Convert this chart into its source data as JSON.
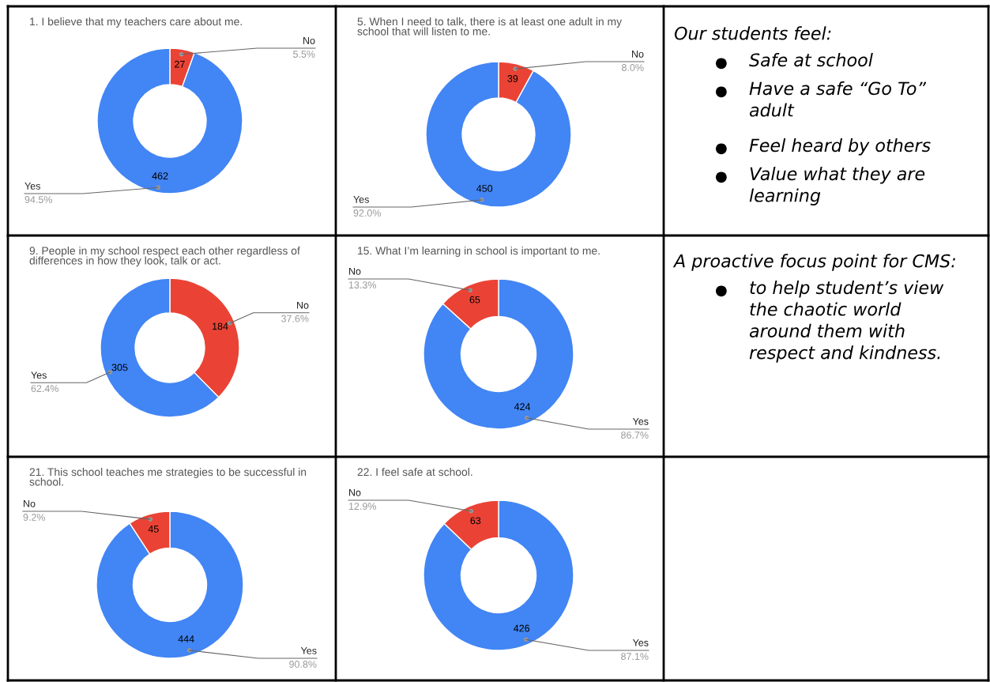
{
  "chart_data": [
    {
      "type": "donut",
      "title": "1. I believe that my teachers care about me.",
      "categories": [
        "No",
        "Yes"
      ],
      "values": [
        27,
        462
      ],
      "colors": [
        "#ea4335",
        "#4285f4"
      ],
      "data_labels": true,
      "annotations": [
        "5.5%",
        "94.5%"
      ]
    },
    {
      "type": "donut",
      "title": "5. When I need to talk, there is at least one adult in my school that will listen to me.",
      "categories": [
        "No",
        "Yes"
      ],
      "values": [
        39,
        450
      ],
      "colors": [
        "#ea4335",
        "#4285f4"
      ],
      "data_labels": true,
      "annotations": [
        "8.0%",
        "92.0%"
      ]
    },
    {
      "type": "donut",
      "title": "9. People in my school respect each other regardless of differences in how they look, talk or act.",
      "categories": [
        "No",
        "Yes"
      ],
      "values": [
        184,
        305
      ],
      "colors": [
        "#ea4335",
        "#4285f4"
      ],
      "data_labels": true,
      "annotations": [
        "37.6%",
        "62.4%"
      ]
    },
    {
      "type": "donut",
      "title": "15. What I’m learning in school is important to me.",
      "categories": [
        "Yes",
        "No"
      ],
      "values": [
        424,
        65
      ],
      "colors": [
        "#4285f4",
        "#ea4335"
      ],
      "data_labels": true,
      "annotations": [
        "86.7%",
        "13.3%"
      ]
    },
    {
      "type": "donut",
      "title": "21. This school teaches me strategies to be successful in school.",
      "categories": [
        "Yes",
        "No"
      ],
      "values": [
        444,
        45
      ],
      "colors": [
        "#4285f4",
        "#ea4335"
      ],
      "data_labels": true,
      "annotations": [
        "90.8%",
        "9.2%"
      ]
    },
    {
      "type": "donut",
      "title": "22. I feel safe at school.",
      "categories": [
        "Yes",
        "No"
      ],
      "values": [
        426,
        63
      ],
      "colors": [
        "#4285f4",
        "#ea4335"
      ],
      "data_labels": true,
      "annotations": [
        "87.1%",
        "12.9%"
      ]
    },
    {
      "type": "other",
      "title": "Our students feel:",
      "annotations": [
        "● Safe at school",
        "● Have a safe “Go To” adult",
        "● Feel heard by others",
        "● Value what they are learning"
      ]
    },
    {
      "type": "other",
      "title": "A proactive focus point for CMS:",
      "annotations": [
        "● to help student’s view the chaotic world around them with respect and kindness."
      ]
    }
  ]
}
